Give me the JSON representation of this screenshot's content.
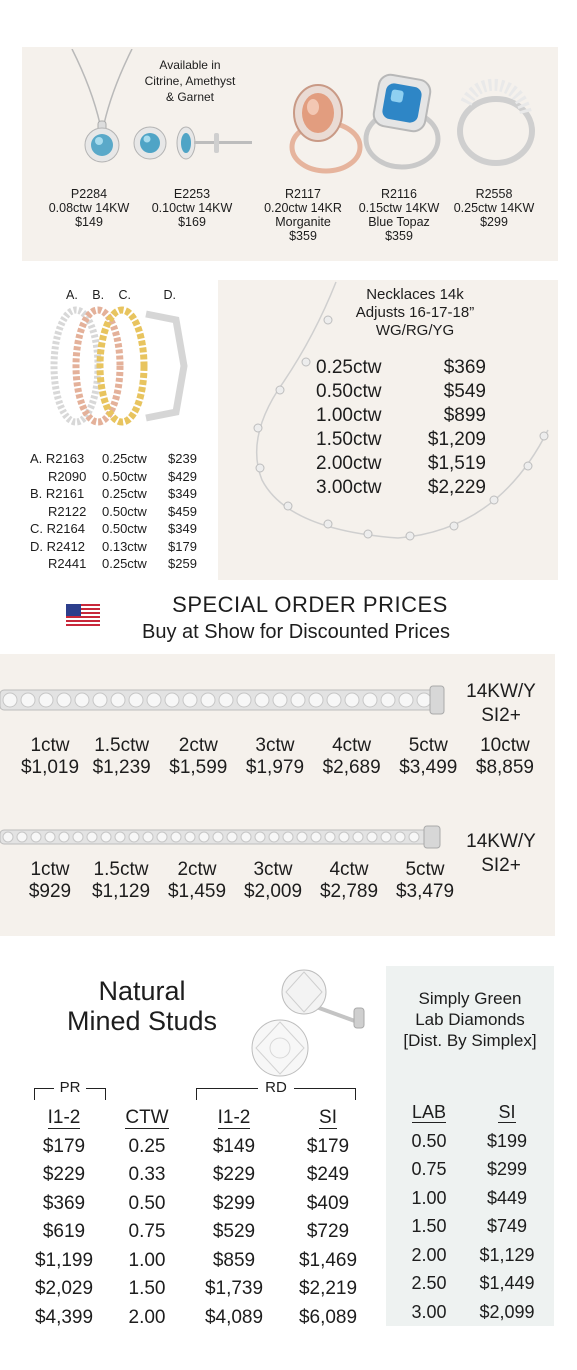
{
  "colors": {
    "panel": "#f5f1ec",
    "studs_panel": "#eef2f1",
    "text": "#1d1d1d"
  },
  "top": {
    "available_note": [
      "Available in",
      "Citrine, Amethyst",
      "& Garnet"
    ],
    "items": [
      {
        "sku": "P2284",
        "spec": "0.08ctw 14KW",
        "price": "$149"
      },
      {
        "sku": "E2253",
        "spec": "0.10ctw 14KW",
        "price": "$169"
      },
      {
        "sku": "R2117",
        "spec": "0.20ctw 14KR",
        "extra": "Morganite",
        "price": "$359"
      },
      {
        "sku": "R2116",
        "spec": "0.15ctw 14KW",
        "extra": "Blue Topaz",
        "price": "$359"
      },
      {
        "sku": "R2558",
        "spec": "0.25ctw  14KW",
        "price": "$299"
      }
    ]
  },
  "bands": {
    "letters": [
      "A.",
      "B.",
      "C.",
      "D."
    ],
    "rows": [
      {
        "label": "A. R2163",
        "ctw": "0.25ctw",
        "price": "$239"
      },
      {
        "label": "R2090",
        "ctw": "0.50ctw",
        "price": "$429"
      },
      {
        "label": "B. R2161",
        "ctw": "0.25ctw",
        "price": "$349"
      },
      {
        "label": "R2122",
        "ctw": "0.50ctw",
        "price": "$459"
      },
      {
        "label": "C. R2164",
        "ctw": "0.50ctw",
        "price": "$349"
      },
      {
        "label": "D. R2412",
        "ctw": "0.13ctw",
        "price": "$179"
      },
      {
        "label": "R2441",
        "ctw": "0.25ctw",
        "price": "$259"
      }
    ]
  },
  "necklaces": {
    "title": [
      "Necklaces 14k",
      "Adjusts 16-17-18”",
      "WG/RG/YG"
    ],
    "rows": [
      {
        "ctw": "0.25ctw",
        "price": "$369"
      },
      {
        "ctw": "0.50ctw",
        "price": "$549"
      },
      {
        "ctw": "1.00ctw",
        "price": "$899"
      },
      {
        "ctw": "1.50ctw",
        "price": "$1,209"
      },
      {
        "ctw": "2.00ctw",
        "price": "$1,519"
      },
      {
        "ctw": "3.00ctw",
        "price": "$2,229"
      }
    ]
  },
  "special": {
    "title": "SPECIAL ORDER PRICES",
    "subtitle": "Buy at Show for Discounted Prices"
  },
  "tennis1": {
    "metal": [
      "14KW/Y",
      "SI2+"
    ],
    "sizes": [
      "1ctw",
      "1.5ctw",
      "2ctw",
      "3ctw",
      "4ctw",
      "5ctw",
      "10ctw"
    ],
    "prices": [
      "$1,019",
      "$1,239",
      "$1,599",
      "$1,979",
      "$2,689",
      "$3,499",
      "$8,859"
    ]
  },
  "tennis2": {
    "metal": [
      "14KW/Y",
      "SI2+"
    ],
    "sizes": [
      "1ctw",
      "1.5ctw",
      "2ctw",
      "3ctw",
      "4ctw",
      "5ctw"
    ],
    "prices": [
      "$929",
      "$1,129",
      "$1,459",
      "$2,009",
      "$2,789",
      "$3,479"
    ]
  },
  "studs": {
    "title": [
      "Natural",
      "Mined Studs"
    ],
    "pr_label": "PR",
    "rd_label": "RD",
    "headers": [
      "I1-2",
      "CTW",
      "I1-2",
      "SI"
    ],
    "rows": [
      [
        "$179",
        "0.25",
        "$149",
        "$179"
      ],
      [
        "$229",
        "0.33",
        "$229",
        "$249"
      ],
      [
        "$369",
        "0.50",
        "$299",
        "$409"
      ],
      [
        "$619",
        "0.75",
        "$529",
        "$729"
      ],
      [
        "$1,199",
        "1.00",
        "$859",
        "$1,469"
      ],
      [
        "$2,029",
        "1.50",
        "$1,739",
        "$2,219"
      ],
      [
        "$4,399",
        "2.00",
        "$4,089",
        "$6,089"
      ]
    ]
  },
  "lab": {
    "title": [
      "Simply Green",
      "Lab Diamonds",
      "[Dist. By Simplex]"
    ],
    "headers": [
      "LAB",
      "SI"
    ],
    "rows": [
      [
        "0.50",
        "$199"
      ],
      [
        "0.75",
        "$299"
      ],
      [
        "1.00",
        "$449"
      ],
      [
        "1.50",
        "$749"
      ],
      [
        "2.00",
        "$1,129"
      ],
      [
        "2.50",
        "$1,449"
      ],
      [
        "3.00",
        "$2,099"
      ]
    ]
  },
  "icons": {
    "flag": "us-flag-icon"
  }
}
